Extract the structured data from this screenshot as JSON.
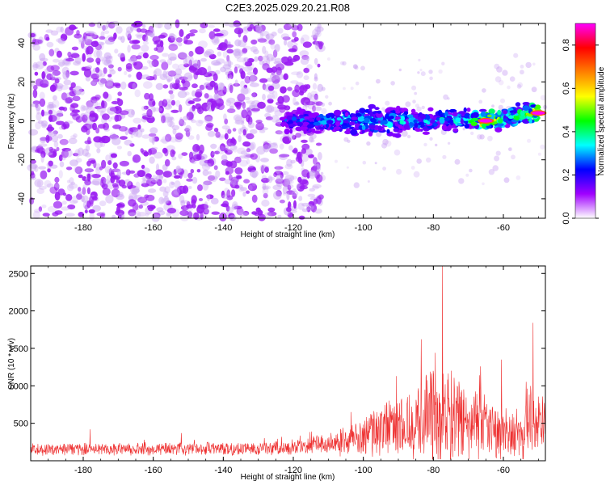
{
  "figure": {
    "title": "C2E3.2025.029.20.21.R08"
  },
  "chart_data": [
    {
      "type": "heatmap",
      "title": "C2E3.2025.029.20.21.R08",
      "xlabel": "Height of straight line (km)",
      "ylabel": "Frequency (Hz)",
      "xlim": [
        -195,
        -48
      ],
      "ylim": [
        -50,
        50
      ],
      "xticks": [
        "-180",
        "-160",
        "-140",
        "-120",
        "-100",
        "-80",
        "-60"
      ],
      "yticks": [
        "-40",
        "-20",
        "0",
        "20",
        "40"
      ],
      "colorbar": {
        "label": "Normalized spectral amplitude",
        "range": [
          0,
          0.9
        ],
        "ticks": [
          "0.0",
          "0.2",
          "0.4",
          "0.6",
          "0.8"
        ],
        "colormap": [
          "#ffffff",
          "#a000ff",
          "#0000ff",
          "#00ffff",
          "#00ff00",
          "#ffff00",
          "#ff8000",
          "#ff0000",
          "#ff00ff"
        ]
      },
      "background_noise": {
        "x_range": [
          -195,
          -112
        ],
        "freq_range": [
          -50,
          50
        ],
        "amplitude": 0.15
      },
      "signal_band": [
        {
          "x": -123,
          "freq": 0,
          "amp": 0.3
        },
        {
          "x": -115,
          "freq": 0,
          "amp": 0.32
        },
        {
          "x": -105,
          "freq": 0,
          "amp": 0.4
        },
        {
          "x": -100,
          "freq": 0,
          "amp": 0.45
        },
        {
          "x": -95,
          "freq": 0,
          "amp": 0.42
        },
        {
          "x": -90,
          "freq": 0,
          "amp": 0.4
        },
        {
          "x": -85,
          "freq": 0,
          "amp": 0.38
        },
        {
          "x": -80,
          "freq": 0,
          "amp": 0.4
        },
        {
          "x": -75,
          "freq": 0.5,
          "amp": 0.42
        },
        {
          "x": -70,
          "freq": 0.5,
          "amp": 0.45
        },
        {
          "x": -65,
          "freq": 0,
          "amp": 0.9
        },
        {
          "x": -60,
          "freq": 1,
          "amp": 0.5
        },
        {
          "x": -55,
          "freq": 3,
          "amp": 0.55
        },
        {
          "x": -50,
          "freq": 4,
          "amp": 0.85
        }
      ]
    },
    {
      "type": "line",
      "xlabel": "Height of straight line (km)",
      "ylabel": "SNR (10 * v/v)",
      "xlim": [
        -195,
        -48
      ],
      "ylim": [
        0,
        2600
      ],
      "xticks": [
        "-180",
        "-160",
        "-140",
        "-120",
        "-100",
        "-80",
        "-60"
      ],
      "yticks": [
        "500",
        "1000",
        "1500",
        "2000",
        "2500"
      ],
      "color": "#ee3030",
      "envelope": [
        {
          "x": -195,
          "base": 150,
          "amp": 90
        },
        {
          "x": -140,
          "base": 160,
          "amp": 100
        },
        {
          "x": -120,
          "base": 170,
          "amp": 110
        },
        {
          "x": -108,
          "base": 250,
          "amp": 200
        },
        {
          "x": -100,
          "base": 330,
          "amp": 300
        },
        {
          "x": -95,
          "base": 420,
          "amp": 400
        },
        {
          "x": -88,
          "base": 500,
          "amp": 550
        },
        {
          "x": -82,
          "base": 560,
          "amp": 700
        },
        {
          "x": -77,
          "base": 600,
          "amp": 800
        },
        {
          "x": -72,
          "base": 520,
          "amp": 650
        },
        {
          "x": -65,
          "base": 430,
          "amp": 500
        },
        {
          "x": -58,
          "base": 360,
          "amp": 380
        },
        {
          "x": -52,
          "base": 520,
          "amp": 650
        },
        {
          "x": -48,
          "base": 480,
          "amp": 550
        }
      ],
      "peaks": [
        {
          "x": -77.4,
          "y": 2600
        },
        {
          "x": -83.5,
          "y": 1620
        },
        {
          "x": -79.5,
          "y": 1440
        },
        {
          "x": -51.5,
          "y": 1840
        },
        {
          "x": -66.5,
          "y": 1260
        },
        {
          "x": -60.5,
          "y": 1350
        },
        {
          "x": -90.5,
          "y": 1130
        },
        {
          "x": -103.5,
          "y": 650
        },
        {
          "x": -178.0,
          "y": 420
        },
        {
          "x": -152.0,
          "y": 370
        }
      ]
    }
  ]
}
